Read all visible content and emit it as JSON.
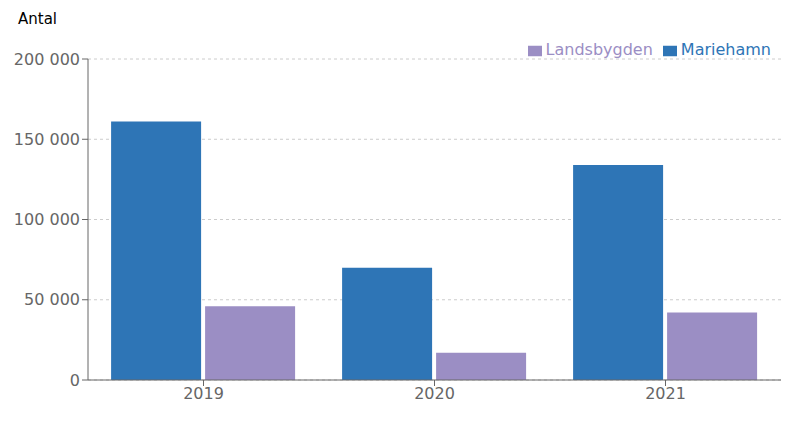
{
  "chart_data": {
    "type": "bar",
    "ylabel": "Antal",
    "categories": [
      "2019",
      "2020",
      "2021"
    ],
    "series": [
      {
        "name": "Mariehamn",
        "color": "#2E75B6",
        "values": [
          161000,
          70000,
          134000
        ]
      },
      {
        "name": "Landsbygden",
        "color": "#9B8EC4",
        "values": [
          46000,
          17000,
          42000
        ]
      }
    ],
    "ylim": [
      0,
      200000
    ],
    "yticks": [
      0,
      {
        "value": 50000,
        "label": "50 000"
      },
      {
        "value": 100000,
        "label": "100 000"
      },
      {
        "value": 150000,
        "label": "150 000"
      },
      {
        "value": 200000,
        "label": "200 000"
      }
    ],
    "grid": true,
    "legend": "upper right"
  }
}
